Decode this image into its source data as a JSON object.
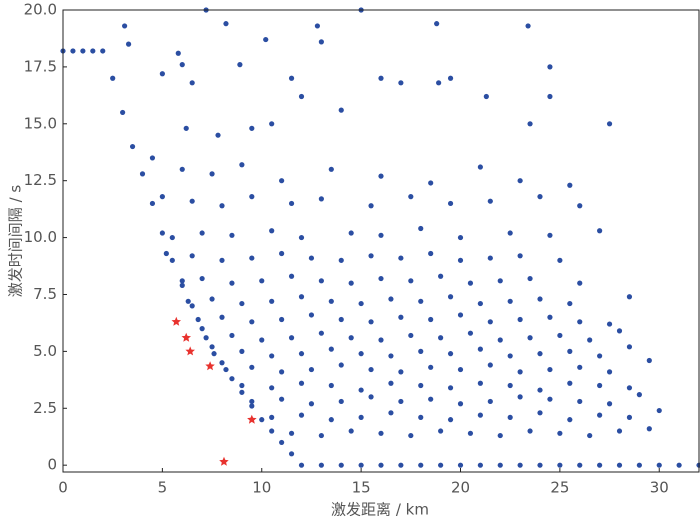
{
  "chart_data": {
    "type": "scatter",
    "x_label": "激发距离 / km",
    "y_label": "激发时间间隔 / s",
    "xlim": [
      0,
      32
    ],
    "ylim": [
      -0.3,
      20
    ],
    "xticks": [
      0,
      5,
      10,
      15,
      20,
      25,
      30
    ],
    "yticks": [
      0,
      2.5,
      {
        "value": 5,
        "label": "5.0"
      },
      7.5,
      {
        "value": 10,
        "label": "10.0"
      },
      12.5,
      {
        "value": 15,
        "label": "15.0"
      },
      17.5,
      {
        "value": 20,
        "label": "20.0"
      }
    ],
    "series": [
      {
        "color": "#2b4ea2",
        "marker": "dot",
        "x": [
          11.5,
          13,
          14.5,
          16,
          17.5,
          19,
          20.5,
          22,
          23.5,
          25,
          26.5,
          28,
          29.5,
          10.5,
          12,
          13.5,
          15,
          16.5,
          18,
          19.5,
          21,
          22.5,
          24,
          25.5,
          27,
          28.5,
          30,
          9.5,
          11,
          12.5,
          14,
          15.5,
          17,
          18.5,
          20,
          21.5,
          23,
          24.5,
          26,
          27.5,
          29,
          9,
          10.5,
          12,
          13.5,
          15,
          16.5,
          18,
          19.5,
          21,
          22.5,
          24,
          25.5,
          27,
          28.5,
          8.2,
          9.5,
          11,
          12.5,
          14,
          15.5,
          17,
          18.5,
          20,
          21.5,
          23,
          24.5,
          26,
          27.5,
          29.5,
          7.6,
          9,
          10.5,
          12,
          13.5,
          15,
          16.5,
          18,
          19.5,
          21,
          22.5,
          24,
          25.5,
          27,
          28.5,
          7.2,
          8.5,
          10,
          11.5,
          13,
          14.5,
          16,
          17.5,
          19,
          20.5,
          22,
          23.5,
          25,
          26.5,
          28,
          6.8,
          8,
          9.5,
          11,
          12.5,
          14,
          15.5,
          17,
          18.5,
          20,
          21.5,
          23,
          24.5,
          26,
          27.5,
          6.3,
          7.5,
          9,
          10.5,
          12,
          13.5,
          15,
          16.5,
          18,
          19.5,
          21,
          22.5,
          24,
          25.5,
          28.5,
          6,
          7,
          8.5,
          10,
          11.5,
          13,
          14.5,
          16,
          17.5,
          19,
          20.5,
          22,
          23.5,
          26,
          5.2,
          6.5,
          8,
          9.5,
          11,
          12.5,
          14,
          15.5,
          17,
          18.5,
          20,
          21.5,
          23,
          25,
          5.5,
          7,
          8.5,
          10.5,
          12,
          14.5,
          16,
          18,
          20,
          22.5,
          24.5,
          27,
          5,
          6.5,
          8,
          9.5,
          11.5,
          13,
          15.5,
          17.5,
          19.5,
          21.5,
          24,
          26,
          4.5,
          6,
          7.5,
          9,
          11,
          13.5,
          16,
          18.5,
          21,
          23,
          25.5,
          3.1,
          3.3,
          5,
          5.8,
          6,
          6.5,
          7.2,
          8.2,
          8.9,
          10.2,
          11.5,
          12,
          12.8,
          13,
          14,
          15,
          16,
          17,
          18.8,
          18.9,
          19.5,
          21.3,
          23.4,
          23.5,
          24.5,
          24.5,
          27.5,
          9.5,
          10.5,
          7.8,
          6.2,
          0,
          0.5,
          1,
          1.5,
          2,
          2.5,
          3,
          3.5,
          4,
          4.5,
          5,
          5.5,
          6,
          6.5,
          7,
          7.5,
          8,
          8.5,
          9,
          9.5,
          10,
          10.5,
          11,
          11.5,
          12,
          13,
          14,
          15,
          16,
          17,
          18,
          19,
          20,
          21,
          22,
          23,
          24,
          25,
          26,
          27,
          28,
          29,
          30,
          31,
          32
        ],
        "values": [
          1.4,
          1.3,
          1.5,
          1.4,
          1.3,
          1.5,
          1.4,
          1.3,
          1.5,
          1.4,
          1.3,
          1.5,
          1.6,
          2.1,
          2.2,
          2.0,
          2.1,
          2.3,
          2.1,
          2.0,
          2.2,
          2.1,
          2.3,
          2.0,
          2.2,
          2.1,
          2.4,
          2.8,
          2.9,
          2.7,
          2.8,
          3.0,
          2.8,
          2.9,
          2.7,
          2.8,
          3.0,
          2.9,
          2.8,
          2.7,
          3.1,
          3.5,
          3.4,
          3.6,
          3.5,
          3.3,
          3.6,
          3.5,
          3.4,
          3.6,
          3.5,
          3.3,
          3.6,
          3.5,
          3.4,
          4.2,
          4.3,
          4.1,
          4.2,
          4.4,
          4.2,
          4.1,
          4.3,
          4.2,
          4.4,
          4.1,
          4.2,
          4.3,
          4.1,
          4.6,
          4.9,
          5.0,
          4.8,
          4.9,
          5.1,
          4.9,
          4.8,
          5.0,
          4.9,
          5.1,
          4.8,
          4.9,
          5.0,
          4.8,
          5.2,
          5.6,
          5.7,
          5.5,
          5.6,
          5.8,
          5.6,
          5.5,
          5.7,
          5.6,
          5.8,
          5.5,
          5.6,
          5.7,
          5.5,
          5.9,
          6.4,
          6.5,
          6.3,
          6.4,
          6.6,
          6.4,
          6.3,
          6.5,
          6.4,
          6.6,
          6.3,
          6.4,
          6.5,
          6.3,
          6.2,
          7.2,
          7.3,
          7.1,
          7.2,
          7.4,
          7.2,
          7.1,
          7.3,
          7.2,
          7.4,
          7.1,
          7.2,
          7.3,
          7.1,
          7.4,
          8.1,
          8.2,
          8.0,
          8.1,
          8.3,
          8.1,
          8.0,
          8.2,
          8.1,
          8.3,
          8.0,
          8.1,
          8.2,
          8.0,
          9.3,
          9.2,
          9.0,
          9.1,
          9.3,
          9.1,
          9.0,
          9.2,
          9.1,
          9.3,
          9.0,
          9.1,
          9.2,
          9.0,
          10.0,
          10.2,
          10.1,
          10.3,
          10.0,
          10.2,
          10.1,
          10.4,
          10.0,
          10.2,
          10.1,
          10.3,
          11.8,
          11.6,
          11.4,
          11.8,
          11.5,
          11.7,
          11.4,
          11.8,
          11.5,
          11.6,
          11.8,
          11.4,
          13.5,
          13.0,
          12.8,
          13.2,
          12.5,
          13.0,
          12.7,
          12.4,
          13.1,
          12.5,
          12.3,
          19.3,
          18.5,
          17.2,
          18.1,
          17.6,
          16.8,
          20,
          19.4,
          17.6,
          18.7,
          17.0,
          16.2,
          19.3,
          18.6,
          15.6,
          20,
          17.0,
          16.8,
          19.4,
          16.8,
          17.0,
          16.2,
          19.3,
          15.0,
          17.5,
          16.2,
          15.0,
          14.8,
          15.0,
          14.5,
          14.8,
          18.2,
          18.2,
          18.2,
          18.2,
          18.2,
          17,
          15.5,
          14,
          12.8,
          11.5,
          10.2,
          9,
          7.9,
          7,
          6,
          5.2,
          4.5,
          3.8,
          3.2,
          2.6,
          2.0,
          1.5,
          1.0,
          0.5,
          0,
          0,
          0,
          0,
          0,
          0,
          0,
          0,
          0,
          0,
          0,
          0,
          0,
          0,
          0,
          0,
          0,
          0,
          0,
          0,
          0
        ]
      },
      {
        "color": "#e8322e",
        "marker": "star",
        "x": [
          5.7,
          6.2,
          6.4,
          7.4,
          9.5,
          8.1
        ],
        "values": [
          6.3,
          5.6,
          5.0,
          4.35,
          2.0,
          0.15
        ]
      }
    ]
  }
}
